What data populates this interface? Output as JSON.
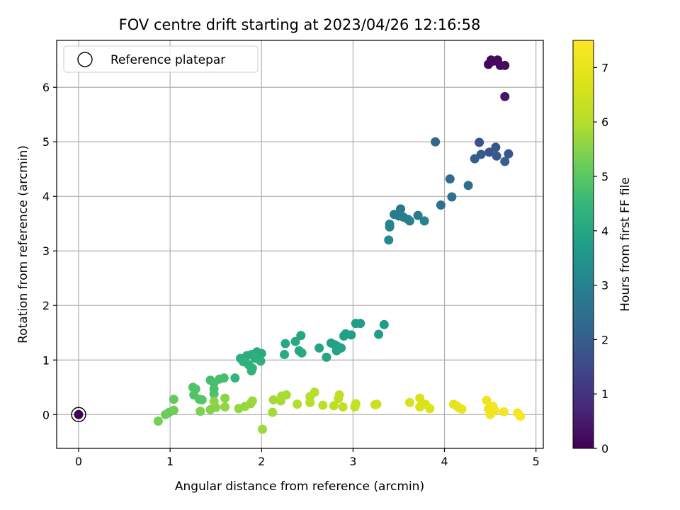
{
  "chart_data": {
    "type": "scatter",
    "title": "FOV centre drift starting at 2023/04/26 12:16:58",
    "xlabel": "Angular distance from reference (arcmin)",
    "ylabel": "Rotation from reference (arcmin)",
    "xlim": [
      -0.24,
      5.08
    ],
    "ylim": [
      -0.62,
      6.86
    ],
    "xticks": [
      0,
      1,
      2,
      3,
      4,
      5
    ],
    "yticks": [
      0,
      1,
      2,
      3,
      4,
      5,
      6
    ],
    "grid": true,
    "legend": {
      "placement": "upper-left",
      "entries": [
        "Reference platepar"
      ]
    },
    "reference_point": {
      "x": 0,
      "y": 0,
      "label": "Reference platepar"
    },
    "colorbar": {
      "label": "Hours from first FF file",
      "range": [
        0,
        7.5
      ],
      "ticks": [
        0,
        1,
        2,
        3,
        4,
        5,
        6,
        7
      ],
      "colormap": "viridis"
    },
    "points": [
      [
        0.0,
        0.0,
        0.0
      ],
      [
        4.48,
        6.42,
        0.1
      ],
      [
        4.51,
        6.5,
        0.12
      ],
      [
        4.58,
        6.5,
        0.14
      ],
      [
        4.54,
        6.48,
        0.16
      ],
      [
        4.61,
        6.4,
        0.18
      ],
      [
        4.66,
        6.4,
        0.2
      ],
      [
        4.66,
        5.83,
        0.4
      ],
      [
        4.38,
        4.99,
        1.7
      ],
      [
        4.49,
        4.81,
        1.75
      ],
      [
        4.56,
        4.9,
        1.8
      ],
      [
        4.7,
        4.78,
        1.85
      ],
      [
        4.57,
        4.74,
        1.9
      ],
      [
        4.4,
        4.77,
        1.95
      ],
      [
        4.33,
        4.69,
        2.0
      ],
      [
        4.66,
        4.64,
        2.05
      ],
      [
        3.9,
        5.0,
        2.25
      ],
      [
        4.06,
        4.32,
        2.35
      ],
      [
        4.26,
        4.2,
        2.45
      ],
      [
        4.08,
        3.99,
        2.5
      ],
      [
        3.96,
        3.84,
        2.55
      ],
      [
        3.52,
        3.77,
        2.7
      ],
      [
        3.45,
        3.67,
        2.75
      ],
      [
        3.71,
        3.65,
        2.8
      ],
      [
        3.55,
        3.62,
        2.85
      ],
      [
        3.5,
        3.64,
        2.85
      ],
      [
        3.6,
        3.58,
        2.9
      ],
      [
        3.62,
        3.55,
        2.95
      ],
      [
        3.78,
        3.55,
        3.0
      ],
      [
        3.4,
        3.49,
        3.05
      ],
      [
        3.4,
        3.44,
        3.1
      ],
      [
        3.39,
        3.2,
        3.15
      ],
      [
        3.34,
        1.65,
        3.7
      ],
      [
        3.03,
        1.67,
        3.72
      ],
      [
        3.08,
        1.67,
        3.74
      ],
      [
        3.28,
        1.47,
        3.76
      ],
      [
        2.98,
        1.46,
        3.78
      ],
      [
        2.92,
        1.48,
        3.8
      ],
      [
        2.9,
        1.44,
        3.82
      ],
      [
        2.76,
        1.31,
        3.85
      ],
      [
        2.8,
        1.28,
        3.87
      ],
      [
        2.83,
        1.25,
        3.89
      ],
      [
        2.87,
        1.22,
        3.91
      ],
      [
        2.82,
        1.17,
        3.93
      ],
      [
        2.63,
        1.22,
        3.95
      ],
      [
        2.71,
        1.05,
        3.97
      ],
      [
        2.43,
        1.45,
        4.0
      ],
      [
        2.26,
        1.3,
        4.02
      ],
      [
        2.37,
        1.34,
        4.04
      ],
      [
        2.41,
        1.17,
        4.06
      ],
      [
        2.44,
        1.13,
        4.08
      ],
      [
        2.25,
        1.1,
        4.1
      ],
      [
        1.95,
        1.15,
        4.15
      ],
      [
        2.0,
        1.12,
        4.17
      ],
      [
        1.89,
        1.1,
        4.19
      ],
      [
        1.84,
        1.08,
        4.21
      ],
      [
        1.77,
        1.03,
        4.23
      ],
      [
        1.93,
        1.03,
        4.25
      ],
      [
        1.99,
        0.98,
        4.27
      ],
      [
        1.8,
        0.97,
        4.29
      ],
      [
        1.86,
        0.91,
        4.31
      ],
      [
        1.9,
        0.85,
        4.33
      ],
      [
        1.89,
        0.8,
        4.35
      ],
      [
        1.71,
        0.67,
        4.4
      ],
      [
        1.44,
        0.63,
        4.7
      ],
      [
        1.54,
        0.65,
        4.72
      ],
      [
        1.59,
        0.67,
        4.74
      ],
      [
        1.48,
        0.58,
        4.76
      ],
      [
        1.48,
        0.47,
        4.78
      ],
      [
        1.48,
        0.38,
        4.8
      ],
      [
        1.25,
        0.5,
        4.85
      ],
      [
        1.28,
        0.47,
        4.87
      ],
      [
        1.26,
        0.36,
        4.89
      ],
      [
        1.32,
        0.28,
        4.91
      ],
      [
        1.35,
        0.27,
        4.93
      ],
      [
        1.04,
        0.28,
        5.1
      ],
      [
        0.99,
        0.04,
        5.15
      ],
      [
        0.95,
        0.0,
        5.2
      ],
      [
        1.04,
        0.08,
        5.25
      ],
      [
        0.87,
        -0.12,
        5.3
      ],
      [
        1.33,
        0.06,
        5.4
      ],
      [
        1.44,
        0.09,
        5.45
      ],
      [
        1.5,
        0.13,
        5.5
      ],
      [
        1.48,
        0.24,
        5.55
      ],
      [
        1.6,
        0.3,
        5.6
      ],
      [
        1.6,
        0.14,
        5.62
      ],
      [
        1.75,
        0.11,
        5.65
      ],
      [
        1.82,
        0.15,
        5.68
      ],
      [
        1.88,
        0.2,
        5.7
      ],
      [
        1.9,
        0.25,
        5.72
      ],
      [
        2.01,
        -0.27,
        5.75
      ],
      [
        2.12,
        0.04,
        5.8
      ],
      [
        2.13,
        0.27,
        5.82
      ],
      [
        2.21,
        0.25,
        5.84
      ],
      [
        2.22,
        0.34,
        5.86
      ],
      [
        2.27,
        0.36,
        5.88
      ],
      [
        2.39,
        0.19,
        5.95
      ],
      [
        2.53,
        0.22,
        6.0
      ],
      [
        2.53,
        0.33,
        6.02
      ],
      [
        2.58,
        0.41,
        6.04
      ],
      [
        2.67,
        0.17,
        6.1
      ],
      [
        2.79,
        0.16,
        6.15
      ],
      [
        2.84,
        0.29,
        6.17
      ],
      [
        2.85,
        0.36,
        6.19
      ],
      [
        2.89,
        0.14,
        6.22
      ],
      [
        3.02,
        0.14,
        6.3
      ],
      [
        3.03,
        0.2,
        6.32
      ],
      [
        3.24,
        0.18,
        6.4
      ],
      [
        3.26,
        0.19,
        6.42
      ],
      [
        3.62,
        0.22,
        6.6
      ],
      [
        3.73,
        0.14,
        6.65
      ],
      [
        3.73,
        0.3,
        6.67
      ],
      [
        3.79,
        0.19,
        6.7
      ],
      [
        3.84,
        0.11,
        6.72
      ],
      [
        4.1,
        0.19,
        6.95
      ],
      [
        4.14,
        0.15,
        6.97
      ],
      [
        4.16,
        0.12,
        6.99
      ],
      [
        4.19,
        0.1,
        7.01
      ],
      [
        4.46,
        0.26,
        7.15
      ],
      [
        4.48,
        0.1,
        7.17
      ],
      [
        4.5,
        0.0,
        7.19
      ],
      [
        4.53,
        0.15,
        7.21
      ],
      [
        4.55,
        0.07,
        7.23
      ],
      [
        4.65,
        0.05,
        7.26
      ],
      [
        4.8,
        0.03,
        7.35
      ],
      [
        4.83,
        -0.03,
        7.4
      ]
    ]
  }
}
